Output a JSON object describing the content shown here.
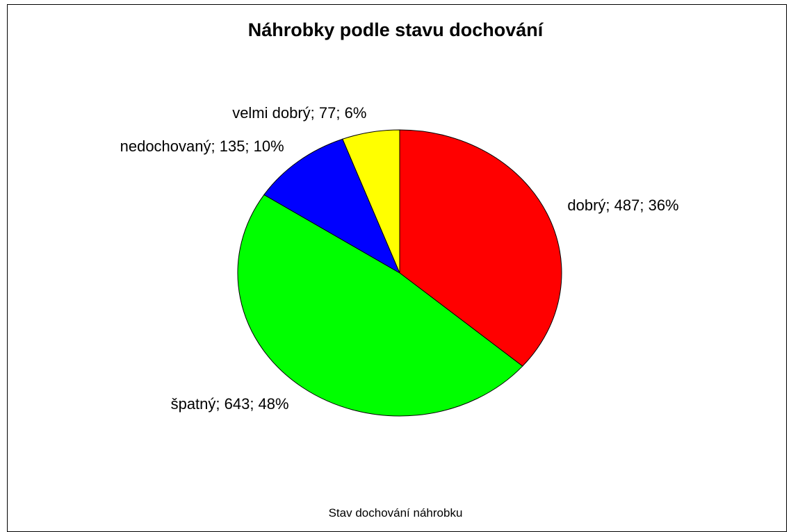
{
  "chart_data": {
    "type": "pie",
    "title": "Náhrobky podle stavu dochování",
    "xlabel": "Stav dochování náhrobku",
    "slices": [
      {
        "label": "dobrý; 487; 36%",
        "category": "dobrý",
        "value": 487,
        "percent": 36,
        "color": "#ff0000"
      },
      {
        "label": "špatný; 643; 48%",
        "category": "špatný",
        "value": 643,
        "percent": 48,
        "color": "#00ff00"
      },
      {
        "label": "nedochovaný; 135; 10%",
        "category": "nedochovaný",
        "value": 135,
        "percent": 10,
        "color": "#0000ff"
      },
      {
        "label": "velmi dobrý; 77; 6%",
        "category": "velmi dobrý",
        "value": 77,
        "percent": 6,
        "color": "#ffff00"
      }
    ],
    "start_angle_deg": 90,
    "direction": "clockwise",
    "legend": "none"
  }
}
